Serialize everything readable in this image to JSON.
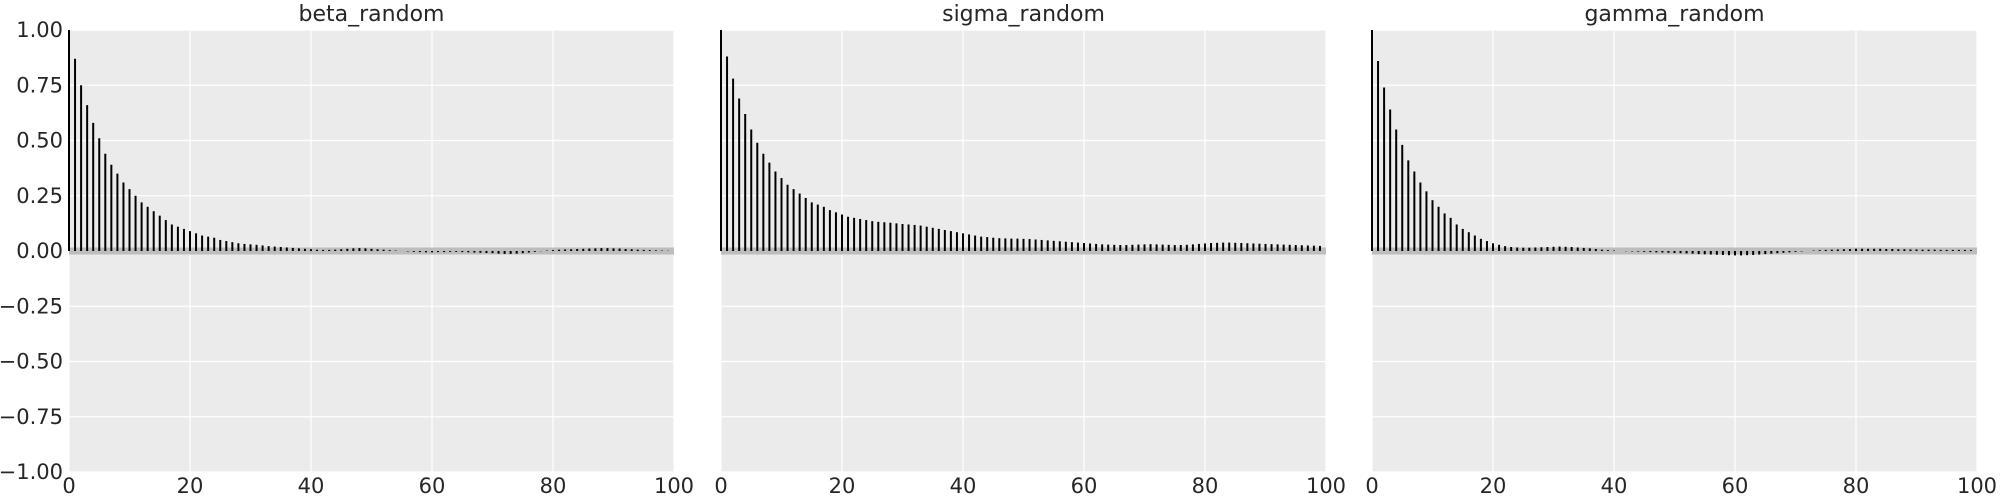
{
  "chart_data": [
    {
      "type": "bar",
      "title": "beta_random",
      "xlabel": "",
      "ylabel": "",
      "xlim": [
        0,
        100
      ],
      "ylim": [
        -1.0,
        1.0
      ],
      "x_ticks": [
        "0",
        "20",
        "40",
        "60",
        "80",
        "100"
      ],
      "y_ticks": [
        "1.00",
        "0.75",
        "0.50",
        "0.25",
        "0.00",
        "−0.25",
        "−0.50",
        "−0.75",
        "−1.00"
      ],
      "grid": true,
      "x": [
        0,
        1,
        2,
        3,
        4,
        5,
        6,
        7,
        8,
        9,
        10,
        11,
        12,
        13,
        14,
        15,
        16,
        17,
        18,
        19,
        20,
        21,
        22,
        23,
        24,
        25,
        26,
        27,
        28,
        29,
        30,
        31,
        32,
        33,
        34,
        35,
        36,
        37,
        38,
        39,
        40,
        41,
        42,
        43,
        44,
        45,
        46,
        47,
        48,
        49,
        50,
        51,
        52,
        53,
        54,
        55,
        56,
        57,
        58,
        59,
        60,
        61,
        62,
        63,
        64,
        65,
        66,
        67,
        68,
        69,
        70,
        71,
        72,
        73,
        74,
        75,
        76,
        77,
        78,
        79,
        80,
        81,
        82,
        83,
        84,
        85,
        86,
        87,
        88,
        89,
        90,
        91,
        92,
        93,
        94,
        95,
        96,
        97,
        98,
        99
      ],
      "values": [
        1.0,
        0.87,
        0.75,
        0.66,
        0.58,
        0.51,
        0.44,
        0.39,
        0.35,
        0.31,
        0.28,
        0.25,
        0.22,
        0.2,
        0.18,
        0.16,
        0.14,
        0.12,
        0.11,
        0.1,
        0.09,
        0.08,
        0.07,
        0.065,
        0.06,
        0.05,
        0.045,
        0.04,
        0.035,
        0.032,
        0.03,
        0.028,
        0.025,
        0.022,
        0.02,
        0.018,
        0.016,
        0.014,
        0.012,
        0.01,
        0.008,
        0.006,
        0.005,
        0.005,
        0.006,
        0.008,
        0.01,
        0.012,
        0.013,
        0.012,
        0.01,
        0.008,
        0.006,
        0.004,
        0.002,
        0.0,
        -0.002,
        -0.004,
        -0.005,
        -0.006,
        -0.006,
        -0.005,
        -0.005,
        -0.004,
        -0.004,
        -0.005,
        -0.006,
        -0.007,
        -0.008,
        -0.009,
        -0.01,
        -0.012,
        -0.013,
        -0.013,
        -0.012,
        -0.01,
        -0.007,
        -0.004,
        -0.001,
        0.002,
        0.004,
        0.006,
        0.007,
        0.008,
        0.009,
        0.01,
        0.011,
        0.012,
        0.013,
        0.013,
        0.012,
        0.011,
        0.009,
        0.008,
        0.006,
        0.005,
        0.004,
        0.003,
        0.002,
        0.001
      ]
    },
    {
      "type": "bar",
      "title": "sigma_random",
      "xlabel": "",
      "ylabel": "",
      "xlim": [
        0,
        100
      ],
      "ylim": [
        -1.0,
        1.0
      ],
      "x_ticks": [
        "0",
        "20",
        "40",
        "60",
        "80",
        "100"
      ],
      "grid": true,
      "x": [
        0,
        1,
        2,
        3,
        4,
        5,
        6,
        7,
        8,
        9,
        10,
        11,
        12,
        13,
        14,
        15,
        16,
        17,
        18,
        19,
        20,
        21,
        22,
        23,
        24,
        25,
        26,
        27,
        28,
        29,
        30,
        31,
        32,
        33,
        34,
        35,
        36,
        37,
        38,
        39,
        40,
        41,
        42,
        43,
        44,
        45,
        46,
        47,
        48,
        49,
        50,
        51,
        52,
        53,
        54,
        55,
        56,
        57,
        58,
        59,
        60,
        61,
        62,
        63,
        64,
        65,
        66,
        67,
        68,
        69,
        70,
        71,
        72,
        73,
        74,
        75,
        76,
        77,
        78,
        79,
        80,
        81,
        82,
        83,
        84,
        85,
        86,
        87,
        88,
        89,
        90,
        91,
        92,
        93,
        94,
        95,
        96,
        97,
        98,
        99
      ],
      "values": [
        1.0,
        0.88,
        0.78,
        0.69,
        0.62,
        0.55,
        0.49,
        0.44,
        0.4,
        0.36,
        0.33,
        0.3,
        0.28,
        0.26,
        0.24,
        0.22,
        0.21,
        0.2,
        0.185,
        0.175,
        0.165,
        0.155,
        0.15,
        0.145,
        0.14,
        0.135,
        0.132,
        0.13,
        0.128,
        0.125,
        0.122,
        0.12,
        0.118,
        0.115,
        0.11,
        0.105,
        0.1,
        0.095,
        0.09,
        0.085,
        0.08,
        0.075,
        0.07,
        0.065,
        0.063,
        0.06,
        0.058,
        0.057,
        0.056,
        0.056,
        0.055,
        0.054,
        0.052,
        0.05,
        0.048,
        0.046,
        0.044,
        0.042,
        0.04,
        0.038,
        0.036,
        0.034,
        0.032,
        0.03,
        0.029,
        0.028,
        0.027,
        0.027,
        0.028,
        0.029,
        0.03,
        0.031,
        0.03,
        0.029,
        0.028,
        0.027,
        0.027,
        0.028,
        0.03,
        0.032,
        0.034,
        0.036,
        0.037,
        0.038,
        0.038,
        0.037,
        0.036,
        0.035,
        0.034,
        0.033,
        0.032,
        0.031,
        0.03,
        0.029,
        0.028,
        0.027,
        0.026,
        0.025,
        0.024,
        0.023
      ]
    },
    {
      "type": "bar",
      "title": "gamma_random",
      "xlabel": "",
      "ylabel": "",
      "xlim": [
        0,
        100
      ],
      "ylim": [
        -1.0,
        1.0
      ],
      "x_ticks": [
        "0",
        "20",
        "40",
        "60",
        "80",
        "100"
      ],
      "grid": true,
      "x": [
        0,
        1,
        2,
        3,
        4,
        5,
        6,
        7,
        8,
        9,
        10,
        11,
        12,
        13,
        14,
        15,
        16,
        17,
        18,
        19,
        20,
        21,
        22,
        23,
        24,
        25,
        26,
        27,
        28,
        29,
        30,
        31,
        32,
        33,
        34,
        35,
        36,
        37,
        38,
        39,
        40,
        41,
        42,
        43,
        44,
        45,
        46,
        47,
        48,
        49,
        50,
        51,
        52,
        53,
        54,
        55,
        56,
        57,
        58,
        59,
        60,
        61,
        62,
        63,
        64,
        65,
        66,
        67,
        68,
        69,
        70,
        71,
        72,
        73,
        74,
        75,
        76,
        77,
        78,
        79,
        80,
        81,
        82,
        83,
        84,
        85,
        86,
        87,
        88,
        89,
        90,
        91,
        92,
        93,
        94,
        95,
        96,
        97,
        98,
        99
      ],
      "values": [
        1.0,
        0.86,
        0.74,
        0.64,
        0.55,
        0.48,
        0.41,
        0.36,
        0.31,
        0.27,
        0.23,
        0.2,
        0.17,
        0.15,
        0.12,
        0.1,
        0.085,
        0.07,
        0.055,
        0.045,
        0.035,
        0.028,
        0.022,
        0.018,
        0.016,
        0.015,
        0.015,
        0.016,
        0.017,
        0.018,
        0.019,
        0.02,
        0.019,
        0.018,
        0.016,
        0.014,
        0.012,
        0.009,
        0.006,
        0.004,
        0.002,
        0.0,
        -0.001,
        -0.002,
        -0.003,
        -0.004,
        -0.005,
        -0.006,
        -0.007,
        -0.008,
        -0.009,
        -0.01,
        -0.011,
        -0.012,
        -0.014,
        -0.015,
        -0.016,
        -0.017,
        -0.018,
        -0.019,
        -0.02,
        -0.02,
        -0.019,
        -0.018,
        -0.016,
        -0.014,
        -0.012,
        -0.01,
        -0.008,
        -0.006,
        -0.004,
        -0.002,
        0.0,
        0.002,
        0.004,
        0.005,
        0.006,
        0.007,
        0.008,
        0.009,
        0.01,
        0.01,
        0.01,
        0.01,
        0.01,
        0.009,
        0.009,
        0.008,
        0.008,
        0.007,
        0.007,
        0.006,
        0.006,
        0.006,
        0.005,
        0.005,
        0.005,
        0.005,
        0.005,
        0.004
      ]
    }
  ],
  "colors": {
    "panel_background": "#ebebeb",
    "grid": "#ffffff",
    "bar": "#000000",
    "zero_band": "#bdbdbd",
    "text": "#262626"
  }
}
